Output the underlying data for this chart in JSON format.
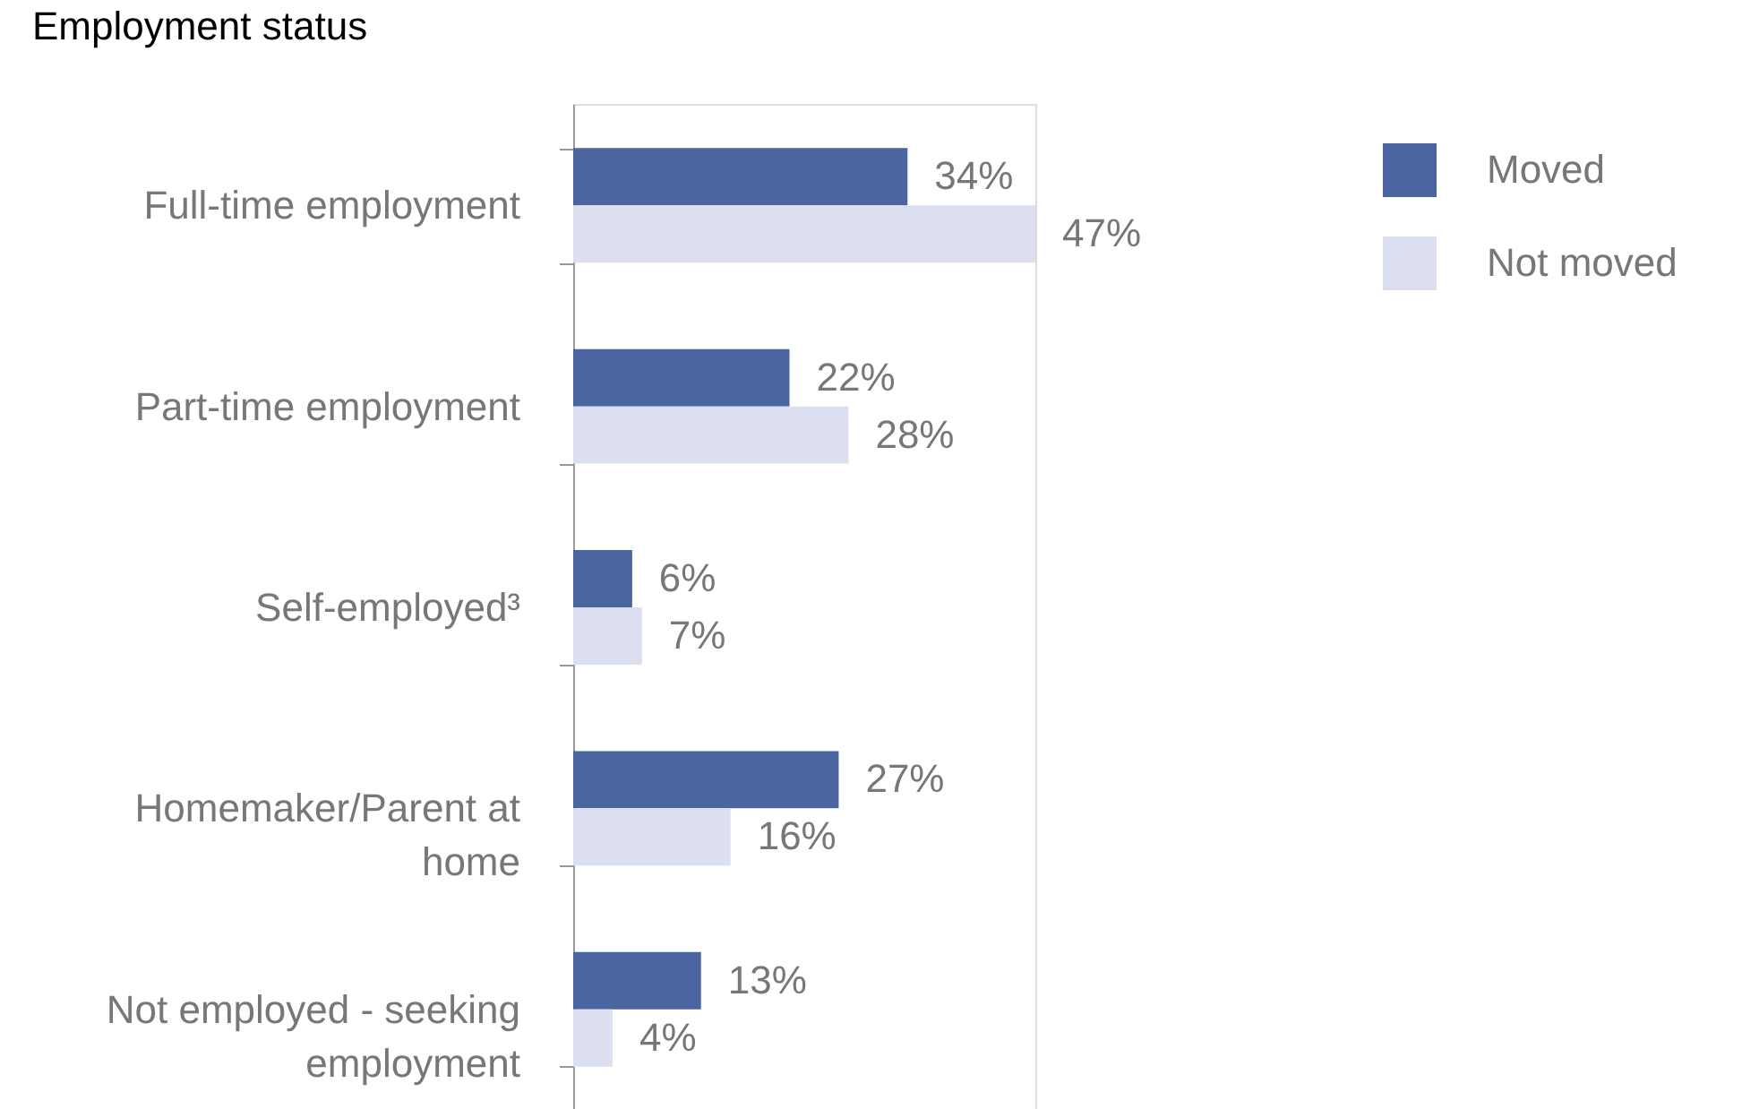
{
  "chart_data": {
    "type": "bar",
    "orientation": "horizontal",
    "title": "Employment status",
    "categories": [
      "Full-time employment",
      "Part-time employment",
      "Self-employed³",
      "Homemaker/Parent at home",
      "Not employed - seeking employment"
    ],
    "series": [
      {
        "name": "Moved",
        "color": "#4a65a0",
        "values": [
          34,
          22,
          6,
          27,
          13
        ],
        "value_labels": [
          "34%",
          "22%",
          "6%",
          "27%",
          "13%"
        ]
      },
      {
        "name": "Not moved",
        "color": "#dcdff0",
        "values": [
          47,
          28,
          7,
          16,
          4
        ],
        "value_labels": [
          "47%",
          "28%",
          "7%",
          "16%",
          "4%"
        ]
      }
    ],
    "legend": "top right",
    "grid": false
  }
}
